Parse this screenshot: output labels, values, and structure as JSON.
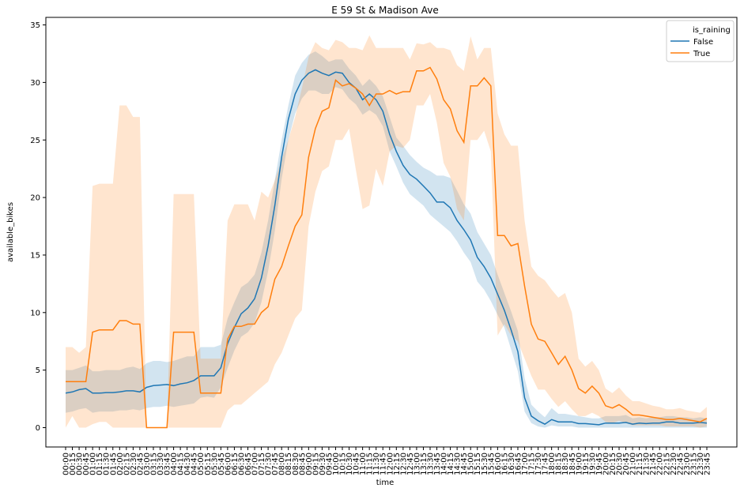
{
  "chart_data": {
    "type": "line",
    "title": "E 59 St & Madison Ave",
    "xlabel": "time",
    "ylabel": "available_bikes",
    "ylim": [
      -1.7,
      36
    ],
    "yticks": [
      0,
      5,
      10,
      15,
      20,
      25,
      30,
      35
    ],
    "grid": false,
    "legend": {
      "title": "is_raining",
      "placement": "top-right",
      "entries": [
        "False",
        "True"
      ]
    },
    "categories": [
      "00:00",
      "00:15",
      "00:30",
      "00:45",
      "01:00",
      "01:15",
      "01:30",
      "01:45",
      "02:00",
      "02:15",
      "02:30",
      "02:45",
      "03:00",
      "03:15",
      "03:30",
      "03:45",
      "04:00",
      "04:15",
      "04:30",
      "04:45",
      "05:00",
      "05:15",
      "05:30",
      "05:45",
      "06:00",
      "06:15",
      "06:30",
      "06:45",
      "07:00",
      "07:15",
      "07:30",
      "07:45",
      "08:00",
      "08:15",
      "08:30",
      "08:45",
      "09:00",
      "09:15",
      "09:30",
      "09:45",
      "10:00",
      "10:15",
      "10:30",
      "10:45",
      "11:00",
      "11:15",
      "11:30",
      "11:45",
      "12:00",
      "12:15",
      "12:30",
      "12:45",
      "13:00",
      "13:15",
      "13:30",
      "13:45",
      "14:00",
      "14:15",
      "14:30",
      "14:45",
      "15:00",
      "15:15",
      "15:30",
      "15:45",
      "16:00",
      "16:15",
      "16:30",
      "16:45",
      "17:00",
      "17:15",
      "17:30",
      "17:45",
      "18:00",
      "18:15",
      "18:30",
      "18:45",
      "19:00",
      "19:15",
      "19:30",
      "19:45",
      "20:00",
      "20:15",
      "20:30",
      "20:45",
      "21:00",
      "21:15",
      "21:30",
      "21:45",
      "22:00",
      "22:15",
      "22:30",
      "22:45",
      "23:00",
      "23:15",
      "23:30",
      "23:45"
    ],
    "series": [
      {
        "name": "False",
        "color": "#1f77b4",
        "values": [
          3.0,
          3.1,
          3.3,
          3.4,
          3.0,
          3.0,
          3.05,
          3.05,
          3.1,
          3.2,
          3.2,
          3.1,
          3.5,
          3.65,
          3.7,
          3.75,
          3.65,
          3.8,
          3.9,
          4.1,
          4.5,
          4.5,
          4.5,
          5.2,
          7.3,
          8.7,
          9.9,
          10.4,
          11.2,
          13.0,
          15.8,
          19.3,
          23.5,
          26.8,
          29.0,
          30.2,
          30.8,
          31.1,
          30.8,
          30.6,
          30.9,
          30.8,
          30.0,
          29.5,
          28.5,
          29.0,
          28.5,
          27.5,
          25.5,
          24.0,
          22.8,
          22.0,
          21.6,
          21.0,
          20.4,
          19.6,
          19.6,
          19.1,
          18.0,
          17.2,
          16.3,
          14.8,
          14.0,
          13.0,
          11.6,
          10.2,
          8.5,
          6.6,
          2.6,
          1.0,
          0.6,
          0.3,
          0.7,
          0.5,
          0.5,
          0.5,
          0.35,
          0.35,
          0.3,
          0.25,
          0.4,
          0.4,
          0.4,
          0.45,
          0.3,
          0.4,
          0.35,
          0.4,
          0.4,
          0.5,
          0.5,
          0.4,
          0.4,
          0.4,
          0.45,
          0.4
        ],
        "upper": [
          5.0,
          5.0,
          5.2,
          5.4,
          4.9,
          4.9,
          5.0,
          5.0,
          5.0,
          5.2,
          5.3,
          5.1,
          5.6,
          5.8,
          5.8,
          5.7,
          5.8,
          6.0,
          6.2,
          6.2,
          7.0,
          7.0,
          7.0,
          7.2,
          9.5,
          10.9,
          12.2,
          12.6,
          13.3,
          15.2,
          18.0,
          21.5,
          25.0,
          28.0,
          30.6,
          31.7,
          32.4,
          32.7,
          32.3,
          31.8,
          32.0,
          32.0,
          31.2,
          30.6,
          29.7,
          30.3,
          29.7,
          28.8,
          27.0,
          25.2,
          24.5,
          23.7,
          23.1,
          22.6,
          22.3,
          21.9,
          21.9,
          21.7,
          20.6,
          19.4,
          18.6,
          17.0,
          16.0,
          15.0,
          13.3,
          11.7,
          10.1,
          8.4,
          4.3,
          2.0,
          1.4,
          0.9,
          1.7,
          1.2,
          1.2,
          1.1,
          1.0,
          0.9,
          0.8,
          0.8,
          1.0,
          1.0,
          1.0,
          1.1,
          0.8,
          0.9,
          0.8,
          0.9,
          0.9,
          1.0,
          1.0,
          0.9,
          0.9,
          0.8,
          0.9,
          0.8
        ],
        "lower": [
          1.3,
          1.4,
          1.6,
          1.7,
          1.3,
          1.4,
          1.4,
          1.4,
          1.5,
          1.5,
          1.6,
          1.5,
          1.7,
          1.8,
          1.8,
          1.9,
          1.8,
          1.9,
          2.0,
          2.1,
          2.6,
          2.7,
          2.6,
          3.5,
          5.2,
          6.7,
          7.9,
          8.3,
          9.1,
          10.9,
          13.6,
          17.1,
          21.6,
          25.0,
          27.3,
          28.6,
          29.3,
          29.3,
          29.0,
          29.0,
          29.6,
          29.4,
          28.6,
          28.1,
          27.2,
          27.6,
          27.2,
          26.2,
          24.0,
          22.7,
          21.3,
          20.3,
          19.8,
          19.3,
          18.5,
          18.0,
          17.5,
          17.0,
          16.2,
          15.2,
          14.4,
          12.7,
          12.0,
          11.0,
          9.8,
          8.7,
          6.8,
          4.9,
          1.4,
          0.4,
          0.1,
          0.0,
          0.2,
          0.1,
          0.1,
          0.1,
          0.0,
          0.0,
          0.0,
          0.0,
          0.0,
          0.0,
          0.0,
          0.0,
          0.0,
          0.0,
          0.0,
          0.0,
          0.0,
          0.0,
          0.0,
          0.0,
          0.0,
          0.0,
          0.0,
          0.0
        ]
      },
      {
        "name": "True",
        "color": "#ff7f0e",
        "values": [
          4.0,
          4.0,
          4.0,
          4.0,
          8.3,
          8.5,
          8.5,
          8.5,
          9.3,
          9.3,
          9.0,
          9.0,
          0.0,
          0.0,
          0.0,
          0.0,
          8.3,
          8.3,
          8.3,
          8.3,
          3.0,
          3.0,
          3.0,
          3.0,
          7.7,
          8.8,
          8.8,
          9.0,
          9.0,
          10.0,
          10.5,
          12.9,
          14.0,
          15.8,
          17.5,
          18.5,
          23.5,
          26.0,
          27.5,
          27.8,
          30.2,
          29.7,
          29.9,
          29.5,
          29.0,
          28.0,
          29.0,
          29.0,
          29.3,
          29.0,
          29.2,
          29.2,
          31.0,
          31.0,
          31.3,
          30.3,
          28.5,
          27.7,
          25.8,
          24.8,
          29.7,
          29.7,
          30.4,
          29.7,
          16.7,
          16.7,
          15.8,
          16.0,
          12.3,
          9.0,
          7.7,
          7.5,
          6.5,
          5.5,
          6.2,
          5.0,
          3.4,
          3.0,
          3.6,
          3.0,
          1.9,
          1.7,
          2.0,
          1.6,
          1.1,
          1.1,
          1.0,
          0.9,
          0.8,
          0.7,
          0.7,
          0.8,
          0.7,
          0.6,
          0.5,
          0.8
        ],
        "upper": [
          7.0,
          7.0,
          6.5,
          7.0,
          21.0,
          21.2,
          21.2,
          21.2,
          28.0,
          28.0,
          27.0,
          27.0,
          0.0,
          0.0,
          0.0,
          0.0,
          20.3,
          20.3,
          20.3,
          20.3,
          6.0,
          6.0,
          6.0,
          6.0,
          18.0,
          19.4,
          19.4,
          19.4,
          18.0,
          20.5,
          20.0,
          21.5,
          23.3,
          25.0,
          27.0,
          29.5,
          32.2,
          33.5,
          33.0,
          32.8,
          33.7,
          33.5,
          33.0,
          33.0,
          32.8,
          34.1,
          33.0,
          33.0,
          33.0,
          33.0,
          33.0,
          32.0,
          33.4,
          33.3,
          33.5,
          33.0,
          33.0,
          32.8,
          31.5,
          31.0,
          34.0,
          32.0,
          33.0,
          33.0,
          27.3,
          25.5,
          24.5,
          24.5,
          18.0,
          14.0,
          13.2,
          12.8,
          12.0,
          11.3,
          11.7,
          10.0,
          6.0,
          5.3,
          5.8,
          5.0,
          3.4,
          3.0,
          3.5,
          2.8,
          2.3,
          2.3,
          2.1,
          1.9,
          1.8,
          1.6,
          1.6,
          1.7,
          1.5,
          1.4,
          1.3,
          1.8
        ],
        "lower": [
          0.0,
          1.0,
          0.0,
          0.0,
          0.3,
          0.5,
          0.5,
          0.0,
          0.0,
          0.0,
          0.0,
          0.0,
          0.0,
          0.0,
          0.0,
          0.0,
          0.0,
          0.0,
          0.0,
          0.0,
          0.0,
          0.0,
          0.0,
          0.0,
          1.5,
          2.0,
          2.0,
          2.5,
          3.0,
          3.5,
          4.0,
          5.5,
          6.5,
          8.0,
          9.5,
          10.2,
          17.5,
          20.5,
          22.3,
          22.7,
          25.0,
          25.0,
          26.0,
          22.4,
          19.0,
          19.3,
          22.5,
          21.0,
          24.0,
          24.5,
          24.3,
          25.0,
          28.0,
          28.0,
          29.0,
          26.5,
          23.0,
          21.8,
          19.0,
          18.0,
          25.0,
          25.0,
          25.8,
          24.0,
          8.0,
          9.0,
          8.0,
          7.5,
          6.0,
          4.5,
          3.3,
          3.3,
          2.5,
          1.8,
          2.3,
          1.6,
          1.0,
          1.0,
          1.3,
          1.0,
          0.5,
          0.4,
          0.6,
          0.4,
          0.2,
          0.2,
          0.2,
          0.2,
          0.2,
          0.1,
          0.1,
          0.1,
          0.1,
          0.1,
          0.0,
          0.1
        ]
      }
    ]
  }
}
